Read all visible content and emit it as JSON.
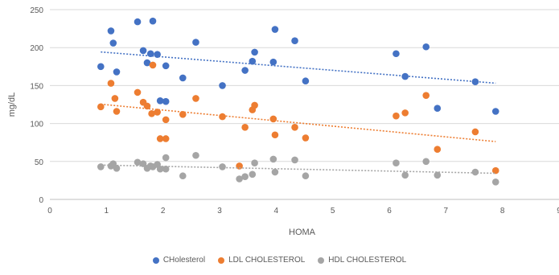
{
  "chart_data": {
    "type": "scatter",
    "title": "",
    "xlabel": "HOMA",
    "ylabel": "mg/dL",
    "xlim": [
      0,
      9
    ],
    "ylim": [
      0,
      250
    ],
    "x_ticks": [
      "0",
      "1",
      "2",
      "3",
      "4",
      "5",
      "6",
      "7",
      "8",
      "9"
    ],
    "y_ticks": [
      "0",
      "50",
      "100",
      "150",
      "200",
      "250"
    ],
    "grid": "horizontal",
    "legend_position": "bottom",
    "series": [
      {
        "name": "CHolesterol",
        "color": "#4472C4",
        "trendline": true,
        "points": [
          [
            0.9,
            175
          ],
          [
            1.08,
            222
          ],
          [
            1.12,
            206
          ],
          [
            1.18,
            168
          ],
          [
            1.55,
            234
          ],
          [
            1.65,
            196
          ],
          [
            1.72,
            180
          ],
          [
            1.78,
            192
          ],
          [
            1.82,
            235
          ],
          [
            1.9,
            191
          ],
          [
            1.95,
            130
          ],
          [
            2.05,
            129
          ],
          [
            2.05,
            176
          ],
          [
            2.35,
            160
          ],
          [
            2.58,
            207
          ],
          [
            3.05,
            150
          ],
          [
            3.45,
            170
          ],
          [
            3.58,
            182
          ],
          [
            3.62,
            194
          ],
          [
            3.95,
            181
          ],
          [
            3.98,
            224
          ],
          [
            4.33,
            209
          ],
          [
            4.52,
            156
          ],
          [
            6.12,
            192
          ],
          [
            6.28,
            162
          ],
          [
            6.65,
            201
          ],
          [
            6.85,
            120
          ],
          [
            7.52,
            155
          ],
          [
            7.88,
            116
          ]
        ]
      },
      {
        "name": "LDL CHOLESTEROL",
        "color": "#ED7D31",
        "trendline": true,
        "points": [
          [
            0.9,
            122
          ],
          [
            1.08,
            153
          ],
          [
            1.15,
            133
          ],
          [
            1.18,
            116
          ],
          [
            1.55,
            141
          ],
          [
            1.65,
            128
          ],
          [
            1.72,
            123
          ],
          [
            1.8,
            113
          ],
          [
            1.82,
            177
          ],
          [
            1.9,
            115
          ],
          [
            1.95,
            80
          ],
          [
            2.05,
            80
          ],
          [
            2.05,
            105
          ],
          [
            2.35,
            112
          ],
          [
            2.58,
            133
          ],
          [
            3.05,
            109
          ],
          [
            3.35,
            44
          ],
          [
            3.45,
            95
          ],
          [
            3.58,
            118
          ],
          [
            3.62,
            124
          ],
          [
            3.95,
            106
          ],
          [
            3.98,
            85
          ],
          [
            4.33,
            95
          ],
          [
            4.52,
            81
          ],
          [
            6.12,
            110
          ],
          [
            6.28,
            114
          ],
          [
            6.65,
            137
          ],
          [
            6.85,
            66
          ],
          [
            7.52,
            89
          ],
          [
            7.88,
            38
          ]
        ]
      },
      {
        "name": "HDL CHOLESTEROL",
        "color": "#A5A5A5",
        "trendline": true,
        "points": [
          [
            0.9,
            43
          ],
          [
            1.08,
            44
          ],
          [
            1.12,
            47
          ],
          [
            1.18,
            41
          ],
          [
            1.55,
            49
          ],
          [
            1.65,
            47
          ],
          [
            1.72,
            41
          ],
          [
            1.78,
            44
          ],
          [
            1.82,
            43
          ],
          [
            1.9,
            46
          ],
          [
            1.95,
            40
          ],
          [
            2.05,
            40
          ],
          [
            2.05,
            55
          ],
          [
            2.35,
            31
          ],
          [
            2.58,
            58
          ],
          [
            3.05,
            43
          ],
          [
            3.35,
            27
          ],
          [
            3.45,
            30
          ],
          [
            3.58,
            33
          ],
          [
            3.62,
            48
          ],
          [
            3.95,
            53
          ],
          [
            3.98,
            36
          ],
          [
            4.33,
            52
          ],
          [
            4.52,
            31
          ],
          [
            6.12,
            48
          ],
          [
            6.28,
            32
          ],
          [
            6.65,
            50
          ],
          [
            6.85,
            32
          ],
          [
            7.52,
            36
          ],
          [
            7.88,
            23
          ]
        ]
      }
    ]
  }
}
